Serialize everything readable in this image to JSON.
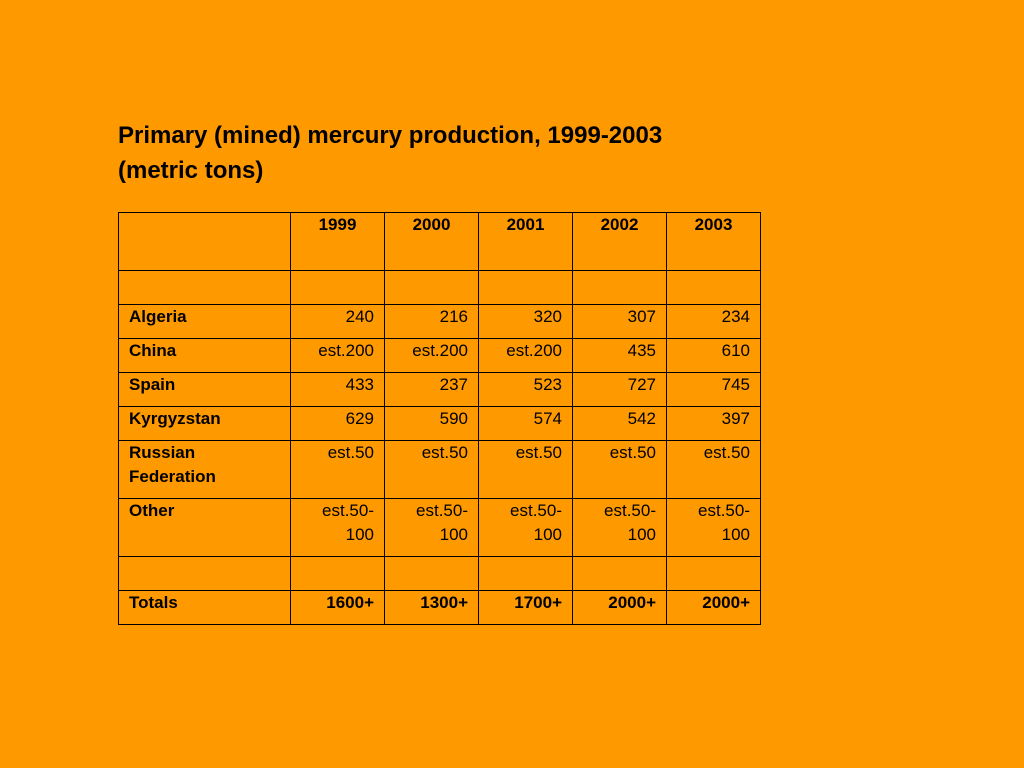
{
  "title": {
    "line1": "Primary (mined) mercury production, 1999-2003",
    "line2": "(metric tons)"
  },
  "table": {
    "corner": "",
    "years": [
      "1999",
      "2000",
      "2001",
      "2002",
      "2003"
    ],
    "rows": [
      {
        "country": "Algeria",
        "values": [
          "240",
          "216",
          "320",
          "307",
          "234"
        ]
      },
      {
        "country": "China",
        "values": [
          "est.200",
          "est.200",
          "est.200",
          "435",
          "610"
        ]
      },
      {
        "country": "Spain",
        "values": [
          "433",
          "237",
          "523",
          "727",
          "745"
        ]
      },
      {
        "country": "Kyrgyzstan",
        "values": [
          "629",
          "590",
          "574",
          "542",
          "397"
        ]
      },
      {
        "country": "Russian Federation",
        "values": [
          "est.50",
          "est.50",
          "est.50",
          "est.50",
          "est.50"
        ]
      },
      {
        "country": "Other",
        "values": [
          "est.50-100",
          "est.50-100",
          "est.50-100",
          "est.50-100",
          "est.50-100"
        ]
      }
    ],
    "totals": {
      "label": "Totals",
      "values": [
        "1600+",
        "1300+",
        "1700+",
        "2000+",
        "2000+"
      ]
    }
  }
}
